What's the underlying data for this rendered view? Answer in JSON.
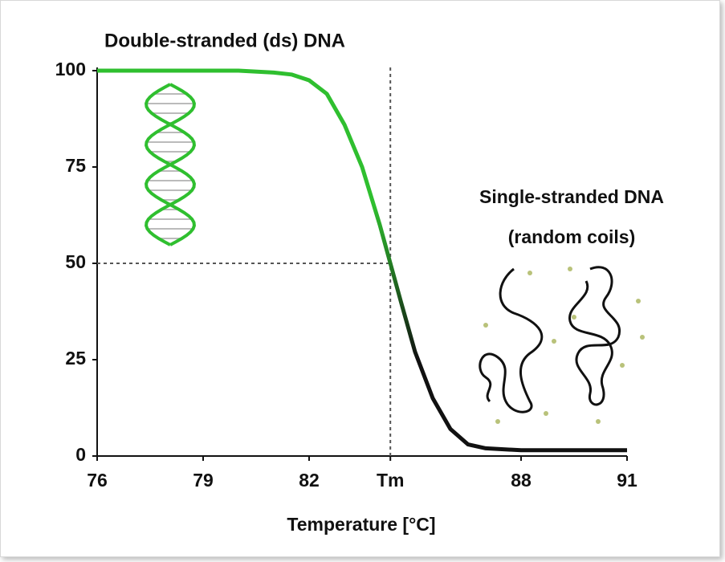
{
  "chart_data": {
    "type": "line",
    "title": "Double-stranded (ds) DNA",
    "annotations": [
      "Single-stranded DNA",
      "(random coils)"
    ],
    "x_label": "Temperature  [°C]",
    "x": [
      76,
      77,
      78,
      79,
      80,
      81,
      81.5,
      82,
      82.5,
      83,
      83.5,
      84,
      84.3,
      84.6,
      85,
      85.5,
      86,
      86.5,
      87,
      88,
      89,
      90,
      91
    ],
    "values": [
      100,
      100,
      100,
      100,
      100,
      99.5,
      99,
      97.5,
      94,
      86,
      75,
      60,
      50,
      40,
      27,
      15,
      7,
      3,
      2,
      1.5,
      1.5,
      1.5,
      1.5
    ],
    "color": "#2fbf2f",
    "xlim": [
      76,
      91
    ],
    "ylim": [
      0,
      100
    ],
    "xticks": [
      76,
      79,
      82,
      {
        "value": 84.3,
        "label": "Tm"
      },
      88,
      91
    ],
    "yticks": [
      0,
      25,
      50,
      75,
      100
    ],
    "melting_point": {
      "x_tick": 3,
      "y_tick": 2
    }
  }
}
